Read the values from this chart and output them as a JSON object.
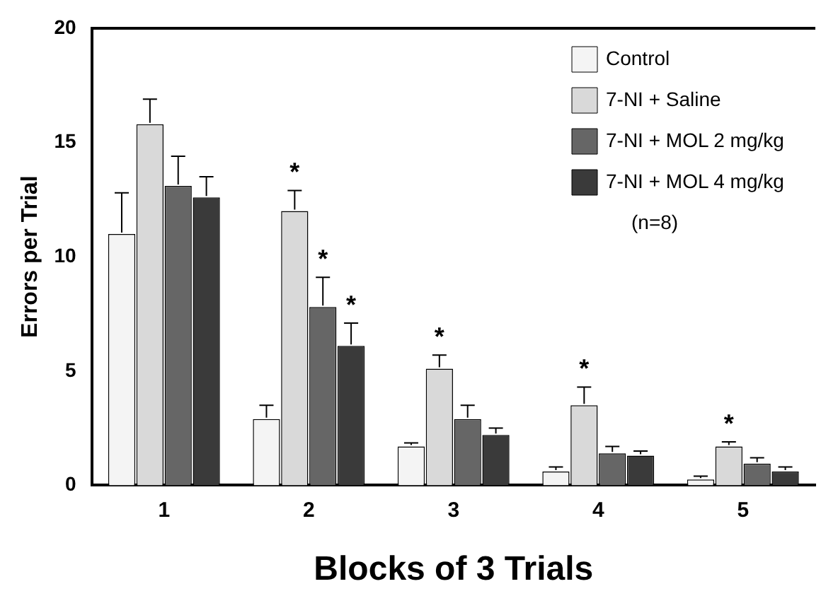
{
  "chart_data": {
    "type": "bar",
    "xlabel": "Blocks of 3 Trials",
    "ylabel": "Errors per Trial",
    "categories": [
      "1",
      "2",
      "3",
      "4",
      "5"
    ],
    "series": [
      {
        "name": "Control",
        "color": "#f4f4f4",
        "values": [
          11.0,
          2.9,
          1.7,
          0.6,
          0.25
        ],
        "errors": [
          1.8,
          0.6,
          0.15,
          0.2,
          0.15
        ]
      },
      {
        "name": "7-NI + Saline",
        "color": "#d9d9d9",
        "values": [
          15.8,
          12.0,
          5.1,
          3.5,
          1.7
        ],
        "errors": [
          1.1,
          0.9,
          0.6,
          0.8,
          0.2
        ]
      },
      {
        "name": "7-NI + MOL 2 mg/kg",
        "color": "#666666",
        "values": [
          13.1,
          7.8,
          2.9,
          1.4,
          0.95
        ],
        "errors": [
          1.3,
          1.3,
          0.6,
          0.3,
          0.25
        ]
      },
      {
        "name": "7-NI + MOL 4 mg/kg",
        "color": "#3a3a3a",
        "values": [
          12.6,
          6.1,
          2.2,
          1.3,
          0.6
        ],
        "errors": [
          0.9,
          1.0,
          0.3,
          0.2,
          0.2
        ]
      }
    ],
    "ylim": [
      0,
      20
    ],
    "yticks": [
      0,
      5,
      10,
      15,
      20
    ],
    "grid": false,
    "legend": "top right",
    "annotations": [
      "(n=8)",
      {
        "text": "*",
        "x": "2",
        "y": 12.9
      },
      {
        "text": "*",
        "x": "2",
        "y": 9.1
      },
      {
        "text": "*",
        "x": "2",
        "y": 7.1
      },
      {
        "text": "*",
        "x": "3",
        "y": 5.7
      },
      {
        "text": "*",
        "x": "4",
        "y": 4.3
      },
      {
        "text": "*",
        "x": "5",
        "y": 1.9
      }
    ]
  }
}
